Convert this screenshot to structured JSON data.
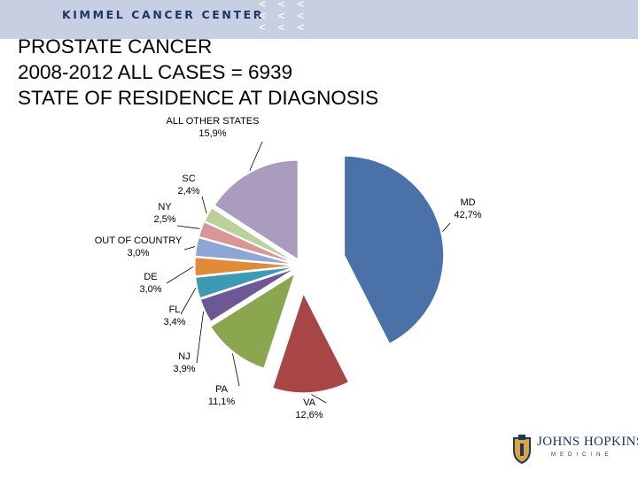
{
  "header": {
    "org_name": "KIMMEL CANCER CENTER",
    "chevrons": [
      "< < <",
      "< < <",
      "< < <"
    ]
  },
  "title_lines": [
    "PROSTATE CANCER",
    "2008-2012 ALL CASES = 6939",
    "STATE OF RESIDENCE AT DIAGNOSIS"
  ],
  "logo": {
    "main": "JOHNS HOPKINS",
    "sub": "MEDICINE"
  },
  "chart_data": {
    "type": "pie",
    "title": "",
    "slices": [
      {
        "name": "MD",
        "value": 42.7,
        "label": "42,7%",
        "color": "#4a72a8"
      },
      {
        "name": "VA",
        "value": 12.6,
        "label": "12,6%",
        "color": "#a84646"
      },
      {
        "name": "PA",
        "value": 11.1,
        "label": "11,1%",
        "color": "#8aa64f"
      },
      {
        "name": "NJ",
        "value": 3.9,
        "label": "3,9%",
        "color": "#6c5894"
      },
      {
        "name": "FL",
        "value": 3.4,
        "label": "3,4%",
        "color": "#3d9ab5"
      },
      {
        "name": "DE",
        "value": 3.0,
        "label": "3,0%",
        "color": "#e08a3a"
      },
      {
        "name": "OUT OF COUNTRY",
        "value": 3.0,
        "label": "3,0%",
        "color": "#8ea6d4"
      },
      {
        "name": "NY",
        "value": 2.5,
        "label": "2,5%",
        "color": "#d99696"
      },
      {
        "name": "SC",
        "value": 2.4,
        "label": "2,4%",
        "color": "#bcd09a"
      },
      {
        "name": "ALL OTHER STATES",
        "value": 15.9,
        "label": "15,9%",
        "color": "#a99cbf"
      }
    ],
    "legend": "none"
  }
}
